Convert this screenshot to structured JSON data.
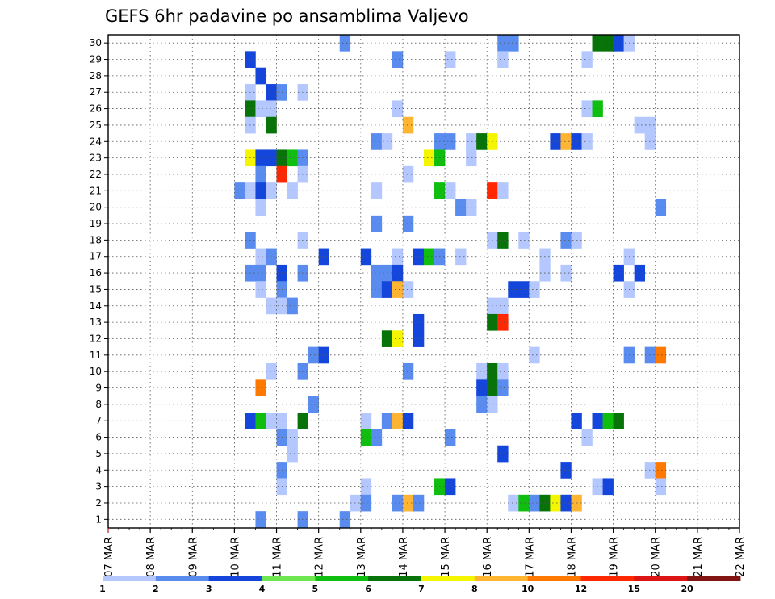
{
  "chart_data": {
    "type": "heatmap",
    "title": "GEFS 6hr padavine po ansamblima Valjevo",
    "y_ticks": [
      "1",
      "2",
      "3",
      "4",
      "5",
      "6",
      "7",
      "8",
      "9",
      "10",
      "11",
      "12",
      "13",
      "14",
      "15",
      "16",
      "17",
      "18",
      "19",
      "20",
      "21",
      "22",
      "23",
      "24",
      "25",
      "26",
      "27",
      "28",
      "29",
      "30"
    ],
    "x_ticks": [
      "07 MAR",
      "08 MAR",
      "09 MAR",
      "10 MAR",
      "11 MAR",
      "12 MAR",
      "13 MAR",
      "14 MAR",
      "15 MAR",
      "16 MAR",
      "17 MAR",
      "18 MAR",
      "19 MAR",
      "20 MAR",
      "21 MAR",
      "22 MAR"
    ],
    "ylim": [
      0,
      30
    ],
    "xlim": [
      "07 MAR",
      "22 MAR"
    ],
    "grid": true,
    "colorbar_labels": [
      "1",
      "2",
      "3",
      "4",
      "5",
      "6",
      "7",
      "8",
      "10",
      "12",
      "15",
      "20"
    ],
    "colorbar_colors": [
      "#b4c8ff",
      "#5a8cf0",
      "#1446dc",
      "#6ee650",
      "#0fbe0f",
      "#087308",
      "#f5f500",
      "#ffb432",
      "#ff7800",
      "#ff2800",
      "#dc1414",
      "#821414"
    ],
    "cells": [
      [
        30,
        22,
        2
      ],
      [
        30,
        37,
        2
      ],
      [
        30,
        38,
        2
      ],
      [
        30,
        46,
        6
      ],
      [
        30,
        47,
        6
      ],
      [
        30,
        48,
        3
      ],
      [
        30,
        49,
        1
      ],
      [
        29,
        13,
        3
      ],
      [
        29,
        27,
        2
      ],
      [
        29,
        32,
        1
      ],
      [
        29,
        37,
        1
      ],
      [
        29,
        45,
        1
      ],
      [
        28,
        14,
        3
      ],
      [
        27,
        13,
        1
      ],
      [
        27,
        15,
        3
      ],
      [
        27,
        16,
        2
      ],
      [
        27,
        18,
        1
      ],
      [
        26,
        13,
        6
      ],
      [
        26,
        14,
        1
      ],
      [
        26,
        15,
        1
      ],
      [
        26,
        27,
        1
      ],
      [
        26,
        45,
        1
      ],
      [
        26,
        46,
        5
      ],
      [
        25,
        13,
        1
      ],
      [
        25,
        15,
        6
      ],
      [
        25,
        28,
        8
      ],
      [
        25,
        50,
        1
      ],
      [
        25,
        51,
        1
      ],
      [
        24,
        25,
        2
      ],
      [
        24,
        26,
        1
      ],
      [
        24,
        31,
        2
      ],
      [
        24,
        32,
        2
      ],
      [
        24,
        34,
        1
      ],
      [
        24,
        35,
        6
      ],
      [
        24,
        36,
        7
      ],
      [
        24,
        42,
        3
      ],
      [
        24,
        43,
        8
      ],
      [
        24,
        44,
        3
      ],
      [
        24,
        45,
        1
      ],
      [
        24,
        51,
        1
      ],
      [
        23,
        13,
        7
      ],
      [
        23,
        14,
        3
      ],
      [
        23,
        15,
        3
      ],
      [
        23,
        16,
        6
      ],
      [
        23,
        17,
        5
      ],
      [
        23,
        18,
        2
      ],
      [
        23,
        30,
        7
      ],
      [
        23,
        31,
        5
      ],
      [
        23,
        34,
        1
      ],
      [
        22,
        14,
        2
      ],
      [
        22,
        16,
        10
      ],
      [
        22,
        18,
        1
      ],
      [
        22,
        28,
        1
      ],
      [
        21,
        12,
        2
      ],
      [
        21,
        13,
        1
      ],
      [
        21,
        14,
        3
      ],
      [
        21,
        15,
        1
      ],
      [
        21,
        17,
        1
      ],
      [
        21,
        25,
        1
      ],
      [
        21,
        31,
        5
      ],
      [
        21,
        32,
        1
      ],
      [
        21,
        36,
        10
      ],
      [
        21,
        37,
        1
      ],
      [
        20,
        14,
        1
      ],
      [
        20,
        33,
        2
      ],
      [
        20,
        34,
        1
      ],
      [
        20,
        52,
        2
      ],
      [
        19,
        25,
        2
      ],
      [
        19,
        28,
        2
      ],
      [
        18,
        13,
        2
      ],
      [
        18,
        18,
        1
      ],
      [
        18,
        36,
        1
      ],
      [
        18,
        37,
        6
      ],
      [
        18,
        39,
        1
      ],
      [
        18,
        43,
        2
      ],
      [
        18,
        44,
        1
      ],
      [
        17,
        14,
        1
      ],
      [
        17,
        15,
        2
      ],
      [
        17,
        20,
        3
      ],
      [
        17,
        24,
        3
      ],
      [
        17,
        27,
        1
      ],
      [
        17,
        29,
        3
      ],
      [
        17,
        30,
        5
      ],
      [
        17,
        31,
        2
      ],
      [
        17,
        33,
        1
      ],
      [
        17,
        41,
        1
      ],
      [
        17,
        49,
        1
      ],
      [
        16,
        13,
        2
      ],
      [
        16,
        14,
        2
      ],
      [
        16,
        16,
        3
      ],
      [
        16,
        18,
        2
      ],
      [
        16,
        25,
        2
      ],
      [
        16,
        26,
        2
      ],
      [
        16,
        27,
        3
      ],
      [
        16,
        41,
        1
      ],
      [
        16,
        43,
        1
      ],
      [
        16,
        48,
        3
      ],
      [
        16,
        50,
        3
      ],
      [
        15,
        14,
        1
      ],
      [
        15,
        16,
        2
      ],
      [
        15,
        25,
        2
      ],
      [
        15,
        26,
        3
      ],
      [
        15,
        27,
        8
      ],
      [
        15,
        28,
        1
      ],
      [
        15,
        38,
        3
      ],
      [
        15,
        39,
        3
      ],
      [
        15,
        40,
        1
      ],
      [
        15,
        49,
        1
      ],
      [
        14,
        15,
        1
      ],
      [
        14,
        16,
        1
      ],
      [
        14,
        17,
        2
      ],
      [
        14,
        36,
        1
      ],
      [
        14,
        37,
        1
      ],
      [
        13,
        29,
        3
      ],
      [
        13,
        36,
        6
      ],
      [
        13,
        37,
        10
      ],
      [
        12,
        26,
        6
      ],
      [
        12,
        27,
        7
      ],
      [
        12,
        29,
        3
      ],
      [
        11,
        19,
        2
      ],
      [
        11,
        20,
        3
      ],
      [
        11,
        40,
        1
      ],
      [
        11,
        49,
        2
      ],
      [
        11,
        51,
        2
      ],
      [
        11,
        52,
        9
      ],
      [
        10,
        15,
        1
      ],
      [
        10,
        18,
        2
      ],
      [
        10,
        28,
        2
      ],
      [
        10,
        35,
        1
      ],
      [
        10,
        36,
        6
      ],
      [
        10,
        37,
        1
      ],
      [
        9,
        14,
        9
      ],
      [
        9,
        35,
        3
      ],
      [
        9,
        36,
        6
      ],
      [
        9,
        37,
        2
      ],
      [
        8,
        19,
        2
      ],
      [
        8,
        35,
        2
      ],
      [
        8,
        36,
        1
      ],
      [
        7,
        13,
        3
      ],
      [
        7,
        14,
        5
      ],
      [
        7,
        15,
        1
      ],
      [
        7,
        16,
        1
      ],
      [
        7,
        18,
        6
      ],
      [
        7,
        24,
        1
      ],
      [
        7,
        26,
        2
      ],
      [
        7,
        27,
        8
      ],
      [
        7,
        28,
        3
      ],
      [
        7,
        44,
        3
      ],
      [
        7,
        46,
        3
      ],
      [
        7,
        47,
        5
      ],
      [
        7,
        48,
        6
      ],
      [
        6,
        16,
        2
      ],
      [
        6,
        17,
        1
      ],
      [
        6,
        24,
        5
      ],
      [
        6,
        25,
        2
      ],
      [
        6,
        32,
        2
      ],
      [
        6,
        45,
        1
      ],
      [
        5,
        17,
        1
      ],
      [
        5,
        37,
        3
      ],
      [
        4,
        16,
        2
      ],
      [
        4,
        43,
        3
      ],
      [
        4,
        51,
        1
      ],
      [
        4,
        52,
        9
      ],
      [
        3,
        16,
        1
      ],
      [
        3,
        24,
        1
      ],
      [
        3,
        31,
        5
      ],
      [
        3,
        32,
        3
      ],
      [
        3,
        46,
        1
      ],
      [
        3,
        47,
        3
      ],
      [
        3,
        52,
        1
      ],
      [
        2,
        23,
        1
      ],
      [
        2,
        24,
        2
      ],
      [
        2,
        27,
        2
      ],
      [
        2,
        28,
        8
      ],
      [
        2,
        29,
        2
      ],
      [
        2,
        38,
        1
      ],
      [
        2,
        39,
        5
      ],
      [
        2,
        40,
        2
      ],
      [
        2,
        41,
        6
      ],
      [
        2,
        42,
        7
      ],
      [
        2,
        43,
        3
      ],
      [
        2,
        44,
        8
      ],
      [
        1,
        14,
        2
      ],
      [
        1,
        18,
        2
      ],
      [
        1,
        22,
        2
      ]
    ]
  }
}
